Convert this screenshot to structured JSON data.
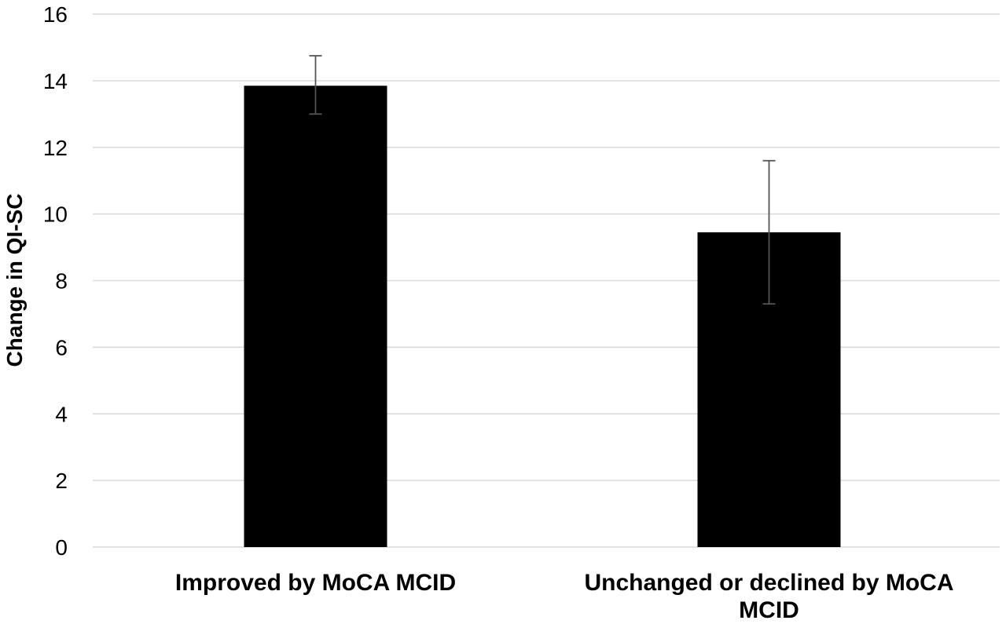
{
  "chart_data": {
    "type": "bar",
    "title": "",
    "xlabel": "",
    "ylabel": "Change in QI-SC",
    "ylim": [
      0,
      16
    ],
    "yticks": [
      0,
      2,
      4,
      6,
      8,
      10,
      12,
      14,
      16
    ],
    "grid": true,
    "categories": [
      [
        "Improved by MoCA MCID"
      ],
      [
        "Unchanged or declined by MoCA",
        "MCID"
      ]
    ],
    "values": [
      13.85,
      9.45
    ],
    "error_low": [
      13.0,
      7.3
    ],
    "error_high": [
      14.75,
      11.6
    ],
    "bar_color": "#000000",
    "grid_color": "#d9d9d9",
    "error_bar_color": "#555555"
  }
}
